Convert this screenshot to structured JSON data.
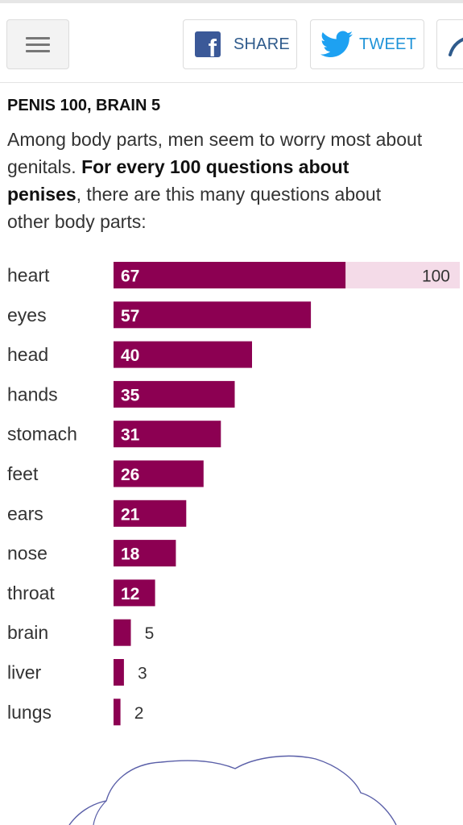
{
  "toolbar": {
    "share_label": "SHARE",
    "tweet_label": "TWEET",
    "icons": [
      "menu-icon",
      "facebook-icon",
      "twitter-icon",
      "more-share-icon"
    ],
    "colors": {
      "facebook": "#3b5998",
      "twitter": "#1da1f2"
    }
  },
  "article": {
    "heading": "PENIS 100, BRAIN 5",
    "intro_part1": "Among body parts, men seem to worry most about genitals.",
    "intro_bold": "For every 100 questions about penises",
    "intro_part2": ", there are this many questions about other body parts:"
  },
  "chart_data": {
    "type": "bar",
    "orientation": "horizontal",
    "categories": [
      "heart",
      "eyes",
      "head",
      "hands",
      "stomach",
      "feet",
      "ears",
      "nose",
      "throat",
      "brain",
      "liver",
      "lungs"
    ],
    "values": [
      67,
      57,
      40,
      35,
      31,
      26,
      21,
      18,
      12,
      5,
      3,
      2
    ],
    "reference": {
      "value": 100,
      "label": "100"
    },
    "xlim": [
      0,
      100
    ],
    "bar_color": "#8c0052",
    "reference_color": "#f4dbe8",
    "grid": false,
    "title": "",
    "xlabel": "",
    "ylabel": ""
  }
}
